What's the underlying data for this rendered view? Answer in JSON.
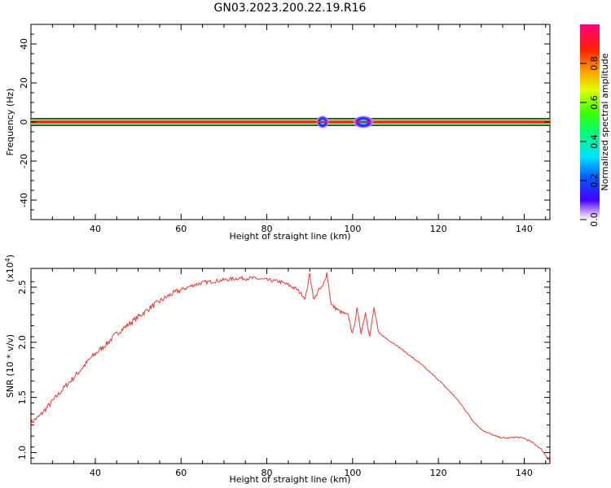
{
  "title": "GN03.2023.200.22.19.R16",
  "chart_data": [
    {
      "type": "heatmap",
      "xlabel": "Height of straight line (km)",
      "ylabel": "Frequency (Hz)",
      "xlim": [
        25,
        146
      ],
      "ylim": [
        -50,
        50
      ],
      "xticks": [
        40,
        60,
        80,
        100,
        120,
        140
      ],
      "yticks": [
        40,
        20,
        0,
        -20,
        -40
      ],
      "band": {
        "y_center": 0,
        "half_width_hz": 2,
        "x_start": 25,
        "x_end": 146
      },
      "blobs": [
        {
          "x": 93,
          "x_range": [
            91.5,
            94.5
          ],
          "y_range": [
            -3.5,
            3.5
          ]
        },
        {
          "x": 102.5,
          "x_range": [
            99.5,
            104.5
          ],
          "y_range": [
            -3.5,
            3.5
          ]
        }
      ],
      "colorbar": {
        "label": "Normalized spectral amplitude",
        "ticks": [
          "0.0",
          "0.2",
          "0.4",
          "0.6",
          "0.8"
        ],
        "range": [
          0,
          1
        ]
      }
    },
    {
      "type": "line",
      "xlabel": "Height of straight line (km)",
      "ylabel": "SNR (10 * v/v)",
      "yscale_label": "(x10",
      "yscale_exp": "4",
      "xlim": [
        25,
        146
      ],
      "ylim": [
        0.9,
        2.67
      ],
      "xticks": [
        40,
        60,
        80,
        100,
        120,
        140
      ],
      "yticks": [
        "2.5",
        "2.0",
        "1.5",
        "1.0"
      ],
      "series": [
        {
          "color": "#e83a3a",
          "x": [
            25,
            27,
            29,
            31,
            33,
            35,
            37,
            39,
            41,
            43,
            45,
            47,
            49,
            51,
            53,
            55,
            57,
            59,
            61,
            63,
            65,
            67,
            69,
            71,
            73,
            75,
            77,
            79,
            81,
            83,
            85,
            87,
            89,
            90,
            91,
            92,
            93,
            94,
            95,
            97,
            99,
            100,
            101,
            102,
            103,
            104,
            105,
            106,
            108,
            110,
            112,
            114,
            116,
            118,
            120,
            122,
            124,
            126,
            128,
            130,
            132,
            134,
            136,
            138,
            140,
            142,
            144,
            146
          ],
          "y": [
            1.27,
            1.33,
            1.42,
            1.51,
            1.6,
            1.68,
            1.77,
            1.86,
            1.93,
            2.0,
            2.08,
            2.14,
            2.2,
            2.26,
            2.32,
            2.37,
            2.42,
            2.46,
            2.49,
            2.52,
            2.54,
            2.55,
            2.56,
            2.57,
            2.58,
            2.58,
            2.58,
            2.57,
            2.56,
            2.55,
            2.52,
            2.48,
            2.4,
            2.62,
            2.38,
            2.47,
            2.5,
            2.63,
            2.34,
            2.28,
            2.24,
            2.07,
            2.3,
            2.09,
            2.27,
            2.05,
            2.31,
            2.09,
            2.03,
            1.98,
            1.92,
            1.86,
            1.8,
            1.73,
            1.66,
            1.58,
            1.5,
            1.4,
            1.29,
            1.21,
            1.17,
            1.14,
            1.13,
            1.14,
            1.13,
            1.09,
            1.03,
            0.92
          ]
        }
      ]
    }
  ]
}
